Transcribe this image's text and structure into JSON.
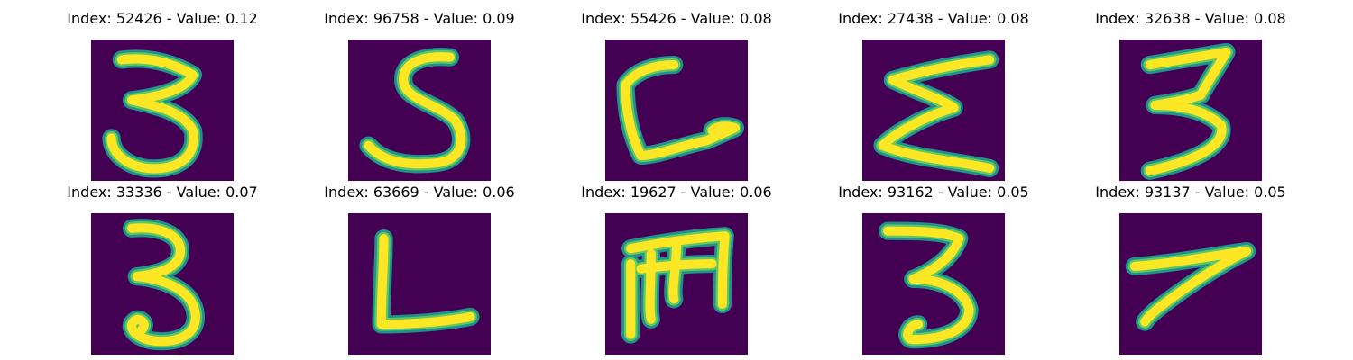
{
  "colors": {
    "background": "#440154",
    "stroke_edge": "#21918c",
    "stroke_mid": "#5ec962",
    "stroke_core": "#fde725"
  },
  "panels": [
    {
      "title": "Index: 52426 - Value: 0.12",
      "index": 52426,
      "value": 0.12,
      "glyph": "3"
    },
    {
      "title": "Index: 96758 - Value: 0.09",
      "index": 96758,
      "value": 0.09,
      "glyph": "S"
    },
    {
      "title": "Index: 55426 - Value: 0.08",
      "index": 55426,
      "value": 0.08,
      "glyph": "C"
    },
    {
      "title": "Index: 27438 - Value: 0.08",
      "index": 27438,
      "value": 0.08,
      "glyph": "Σ"
    },
    {
      "title": "Index: 32638 - Value: 0.08",
      "index": 32638,
      "value": 0.08,
      "glyph": "3"
    },
    {
      "title": "Index: 33336 - Value: 0.07",
      "index": 33336,
      "value": 0.07,
      "glyph": "3"
    },
    {
      "title": "Index: 63669 - Value: 0.06",
      "index": 63669,
      "value": 0.06,
      "glyph": "L"
    },
    {
      "title": "Index: 19627 - Value: 0.06",
      "index": 19627,
      "value": 0.06,
      "glyph": "m"
    },
    {
      "title": "Index: 93162 - Value: 0.05",
      "index": 93162,
      "value": 0.05,
      "glyph": "3"
    },
    {
      "title": "Index: 93137 - Value: 0.05",
      "index": 93137,
      "value": 0.05,
      "glyph": "7"
    }
  ]
}
